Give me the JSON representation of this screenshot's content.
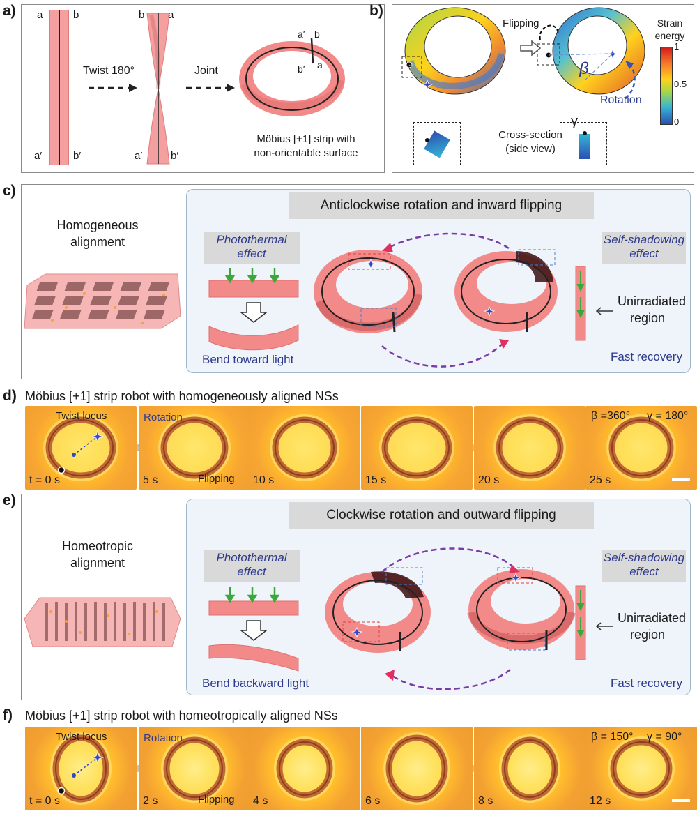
{
  "panels": {
    "a": {
      "letter": "a)",
      "corner_labels": {
        "a": "a",
        "b": "b",
        "a_prime": "a′",
        "b_prime": "b′"
      },
      "step1": "Twist 180°",
      "step2": "Joint",
      "caption_line1": "Möbius [+1] strip with",
      "caption_line2": "non-orientable surface"
    },
    "b": {
      "letter": "b)",
      "flipping": "Flipping",
      "beta": "β",
      "gamma": "γ",
      "rotation": "Rotation",
      "cross_section_line1": "Cross-section",
      "cross_section_line2": "(side view)",
      "colorbar_title_line1": "Strain",
      "colorbar_title_line2": "energy",
      "colorbar_ticks": [
        "1",
        "0.5",
        "0"
      ],
      "colors": {
        "high": "#d7191c",
        "mid": "#ffd21c",
        "low": "#2b4fb3"
      }
    },
    "c": {
      "letter": "c)",
      "alignment_line1": "Homogeneous",
      "alignment_line2": "alignment",
      "header": "Anticlockwise rotation and inward flipping",
      "photothermal_line1": "Photothermal",
      "photothermal_line2": "effect",
      "bend": "Bend toward light",
      "self_shadow_line1": "Self-shadowing",
      "self_shadow_line2": "effect",
      "unirradiated_line1": "Unirradiated",
      "unirradiated_line2": "region",
      "recovery": "Fast recovery"
    },
    "d": {
      "letter": "d)",
      "title": "Möbius [+1] strip robot with homogeneously aligned NSs",
      "twist_locus": "Twist locus",
      "rotation": "Rotation",
      "flipping": "Flipping",
      "beta_label": "β =360°",
      "gamma_label": "γ = 180°",
      "times": [
        "t = 0 s",
        "5 s",
        "10 s",
        "15 s",
        "20 s",
        "25 s"
      ]
    },
    "e": {
      "letter": "e)",
      "alignment_line1": "Homeotropic",
      "alignment_line2": "alignment",
      "header": "Clockwise rotation and outward flipping",
      "photothermal_line1": "Photothermal",
      "photothermal_line2": "effect",
      "bend": "Bend backward light",
      "self_shadow_line1": "Self-shadowing",
      "self_shadow_line2": "effect",
      "unirradiated_line1": "Unirradiated",
      "unirradiated_line2": "region",
      "recovery": "Fast recovery"
    },
    "f": {
      "letter": "f)",
      "title": "Möbius [+1] strip robot with homeotropically aligned NSs",
      "twist_locus": "Twist locus",
      "rotation": "Rotation",
      "flipping": "Flipping",
      "beta_label": "β = 150°",
      "gamma_label": "γ =  90°",
      "times": [
        "t = 0 s",
        "2 s",
        "4 s",
        "6 s",
        "8 s",
        "12 s"
      ]
    }
  },
  "colors": {
    "strip_pink": "#f08a8a",
    "strip_dark": "#c44b4b",
    "label_blue": "#2e3a8c",
    "header_grey": "#d9d9d9",
    "panel_bg": "#eef4fa"
  }
}
